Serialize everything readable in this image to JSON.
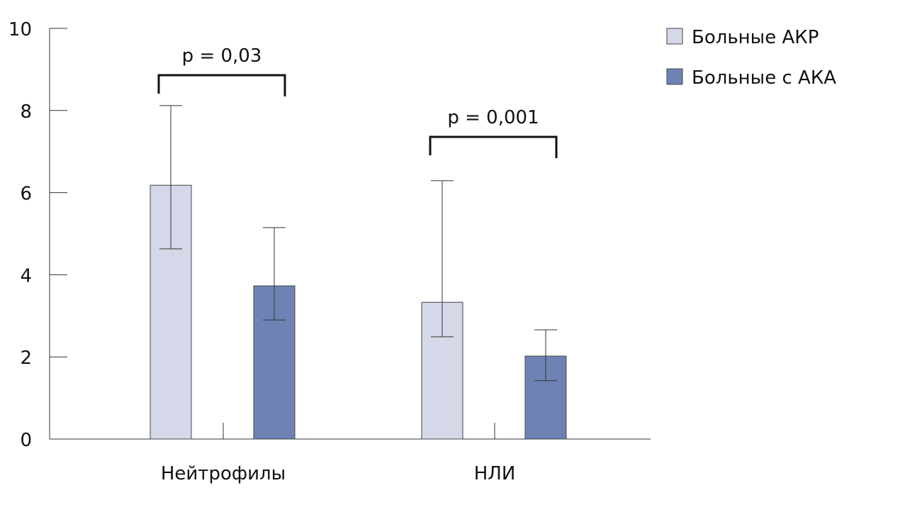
{
  "chart_data": {
    "type": "bar",
    "categories": [
      "Нейтрофилы",
      "НЛИ"
    ],
    "series": [
      {
        "name": "Больные АКР",
        "color": "#d5d8e8",
        "values": [
          6.18,
          3.33
        ],
        "err_high": [
          8.12,
          6.29
        ],
        "err_low": [
          4.63,
          2.49
        ]
      },
      {
        "name": "Больные с АКА",
        "color": "#6e83b4",
        "values": [
          3.73,
          2.02
        ],
        "err_high": [
          5.15,
          2.66
        ],
        "err_low": [
          2.9,
          1.42
        ]
      }
    ],
    "ylim": [
      0,
      10
    ],
    "yticks": [
      "0",
      "2",
      "4",
      "6",
      "8",
      "10"
    ],
    "annotations": [
      {
        "category": "Нейтрофилы",
        "text": "p = 0,03"
      },
      {
        "category": "НЛИ",
        "text": "p = 0,001"
      }
    ],
    "grid": false,
    "legend": "top-right"
  }
}
